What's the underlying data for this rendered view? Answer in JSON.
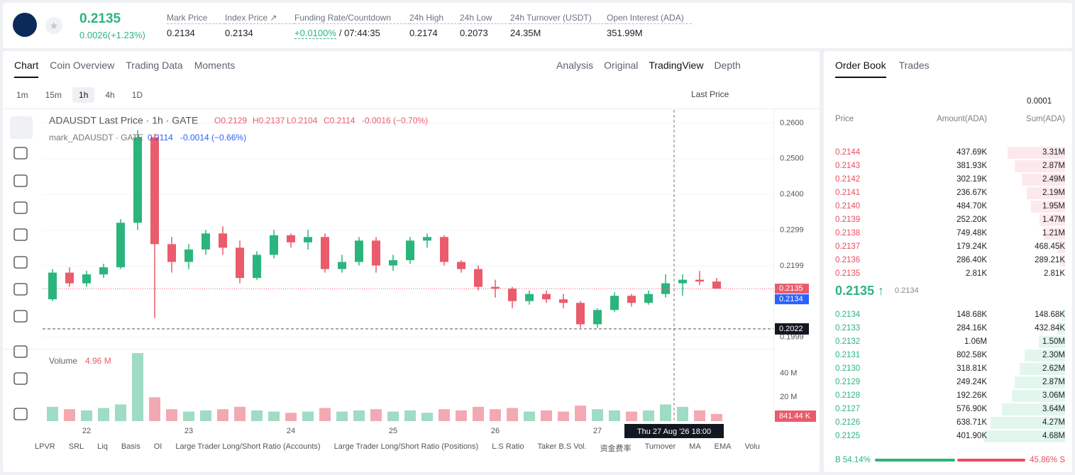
{
  "header": {
    "price": "0.2135",
    "change": "0.0026(+1.23%)",
    "stats": [
      {
        "label": "Mark Price",
        "value": "0.2134"
      },
      {
        "label": "Index Price ↗",
        "value": "0.2134"
      },
      {
        "label": "Funding Rate/Countdown",
        "value": "+0.0100%",
        "extra": "/ 07:44:35"
      },
      {
        "label": "24h High",
        "value": "0.2174"
      },
      {
        "label": "24h Low",
        "value": "0.2073"
      },
      {
        "label": "24h Turnover (USDT)",
        "value": "24.35M"
      },
      {
        "label": "Open Interest (ADA)",
        "value": "351.99M"
      }
    ]
  },
  "chart_tabs": [
    "Chart",
    "Coin Overview",
    "Trading Data",
    "Moments"
  ],
  "view_tabs": [
    "Analysis",
    "Original",
    "TradingView",
    "Depth"
  ],
  "intervals": [
    "1m",
    "15m",
    "1h",
    "4h",
    "1D"
  ],
  "price_type": "Last Price",
  "legend": {
    "title": "ADAUSDT Last Price · 1h · GATE",
    "o": "O0.2129",
    "h": "H0.2137",
    "l": "L0.2104",
    "c": "C0.2114",
    "chg": "-0.0016 (−0.70%)",
    "mark": "mark_ADAUSDT · GATE",
    "mark_value": "0.2114",
    "mark_chg": "-0.0014 (−0.66%)",
    "volume": "Volume",
    "volume_value": "4.96 M"
  },
  "chart_data": {
    "type": "candlestick",
    "candles": [
      [
        0.2105,
        0.219,
        0.21,
        0.218
      ],
      [
        0.218,
        0.2195,
        0.214,
        0.215
      ],
      [
        0.215,
        0.2185,
        0.214,
        0.2175
      ],
      [
        0.2175,
        0.2205,
        0.2165,
        0.2195
      ],
      [
        0.2195,
        0.233,
        0.219,
        0.232
      ],
      [
        0.232,
        0.258,
        0.23,
        0.256
      ],
      [
        0.256,
        0.257,
        0.2053,
        0.226
      ],
      [
        0.226,
        0.228,
        0.218,
        0.221
      ],
      [
        0.221,
        0.226,
        0.219,
        0.2245
      ],
      [
        0.2245,
        0.23,
        0.223,
        0.229
      ],
      [
        0.229,
        0.231,
        0.223,
        0.225
      ],
      [
        0.225,
        0.227,
        0.215,
        0.2165
      ],
      [
        0.2165,
        0.224,
        0.216,
        0.223
      ],
      [
        0.223,
        0.23,
        0.222,
        0.2285
      ],
      [
        0.2285,
        0.229,
        0.225,
        0.2265
      ],
      [
        0.2265,
        0.23,
        0.2245,
        0.228
      ],
      [
        0.228,
        0.229,
        0.218,
        0.219
      ],
      [
        0.219,
        0.223,
        0.218,
        0.221
      ],
      [
        0.221,
        0.228,
        0.22,
        0.227
      ],
      [
        0.227,
        0.228,
        0.218,
        0.22
      ],
      [
        0.22,
        0.223,
        0.2185,
        0.2215
      ],
      [
        0.2215,
        0.228,
        0.2205,
        0.227
      ],
      [
        0.227,
        0.229,
        0.225,
        0.228
      ],
      [
        0.228,
        0.2285,
        0.22,
        0.221
      ],
      [
        0.221,
        0.2215,
        0.218,
        0.219
      ],
      [
        0.219,
        0.22,
        0.213,
        0.214
      ],
      [
        0.214,
        0.216,
        0.211,
        0.2135
      ],
      [
        0.2135,
        0.214,
        0.208,
        0.21
      ],
      [
        0.21,
        0.213,
        0.209,
        0.212
      ],
      [
        0.212,
        0.213,
        0.2095,
        0.2105
      ],
      [
        0.2105,
        0.212,
        0.208,
        0.2095
      ],
      [
        0.2095,
        0.21,
        0.2025,
        0.2035
      ],
      [
        0.2035,
        0.208,
        0.2025,
        0.2075
      ],
      [
        0.2075,
        0.2125,
        0.207,
        0.2115
      ],
      [
        0.2115,
        0.212,
        0.2085,
        0.2095
      ],
      [
        0.2095,
        0.213,
        0.209,
        0.212
      ],
      [
        0.212,
        0.2175,
        0.211,
        0.215
      ],
      [
        0.215,
        0.2175,
        0.2115,
        0.216
      ],
      [
        0.216,
        0.2185,
        0.2145,
        0.2155
      ],
      [
        0.2155,
        0.2165,
        0.2135,
        0.2135
      ]
    ],
    "volumes": [
      12,
      10,
      9,
      11,
      14,
      57,
      20,
      10,
      8,
      9,
      10,
      12,
      9,
      8,
      7,
      8,
      11,
      8,
      9,
      10,
      8,
      9,
      7,
      10,
      9,
      12,
      10,
      11,
      8,
      9,
      8,
      13,
      10,
      9,
      8,
      9,
      14,
      12,
      9,
      6
    ],
    "ylim": [
      0.1978,
      0.2637
    ],
    "yticks": [
      {
        "value": 0.26,
        "label": "0.2600"
      },
      {
        "value": 0.25,
        "label": "0.2500"
      },
      {
        "value": 0.24,
        "label": "0.2400"
      },
      0.2299,
      0.2199,
      0.1999
    ],
    "vlim": [
      0,
      60
    ],
    "vticks": [
      {
        "value": 40,
        "label": "40 M"
      },
      {
        "value": 20,
        "label": "20 M"
      }
    ],
    "x_labels": [
      "22",
      "23",
      "24",
      "25",
      "26",
      "27"
    ],
    "last_price": {
      "value": 0.2135,
      "label": "0.2135"
    },
    "mark_price": {
      "value": 0.2134,
      "label": "0.2134"
    },
    "crosshair": {
      "value": 0.2022,
      "label": "0.2022"
    },
    "crosshair_time": "Thu 27 Aug '26   18:00",
    "volume_badge": "841.44 K"
  },
  "indicators": [
    "LPVR",
    "SRL",
    "Liq",
    "Basis",
    "OI",
    "Large Trader Long/Short Ratio (Accounts)",
    "Large Trader Long/Short Ratio (Positions)",
    "L.S Ratio",
    "Taker B.S Vol.",
    "资金费率",
    "Turnover",
    "MA",
    "EMA",
    "Volu"
  ],
  "order_book": {
    "tabs": [
      "Order Book",
      "Trades"
    ],
    "precision": "0.0001",
    "columns": [
      "Price",
      "Amount(ADA)",
      "Sum(ADA)"
    ],
    "asks": [
      [
        "0.2144",
        "437.69K",
        "3.31M"
      ],
      [
        "0.2143",
        "381.93K",
        "2.87M"
      ],
      [
        "0.2142",
        "302.19K",
        "2.49M"
      ],
      [
        "0.2141",
        "236.67K",
        "2.19M"
      ],
      [
        "0.2140",
        "484.70K",
        "1.95M"
      ],
      [
        "0.2139",
        "252.20K",
        "1.47M"
      ],
      [
        "0.2138",
        "749.48K",
        "1.21M"
      ],
      [
        "0.2137",
        "179.24K",
        "468.45K"
      ],
      [
        "0.2136",
        "286.40K",
        "289.21K"
      ],
      [
        "0.2135",
        "2.81K",
        "2.81K"
      ]
    ],
    "mid": "0.2135 ↑",
    "mid_mark": "0.2134",
    "bids": [
      [
        "0.2134",
        "148.68K",
        "148.68K"
      ],
      [
        "0.2133",
        "284.16K",
        "432.84K"
      ],
      [
        "0.2132",
        "1.06M",
        "1.50M"
      ],
      [
        "0.2131",
        "802.58K",
        "2.30M"
      ],
      [
        "0.2130",
        "318.81K",
        "2.62M"
      ],
      [
        "0.2129",
        "249.24K",
        "2.87M"
      ],
      [
        "0.2128",
        "192.26K",
        "3.06M"
      ],
      [
        "0.2127",
        "576.90K",
        "3.64M"
      ],
      [
        "0.2126",
        "638.71K",
        "4.27M"
      ],
      [
        "0.2125",
        "401.90K",
        "4.68M"
      ]
    ],
    "buy": {
      "value": 54.14,
      "label": "B 54.14%"
    },
    "sell": {
      "value": 45.86,
      "label": "45.86% S"
    }
  }
}
